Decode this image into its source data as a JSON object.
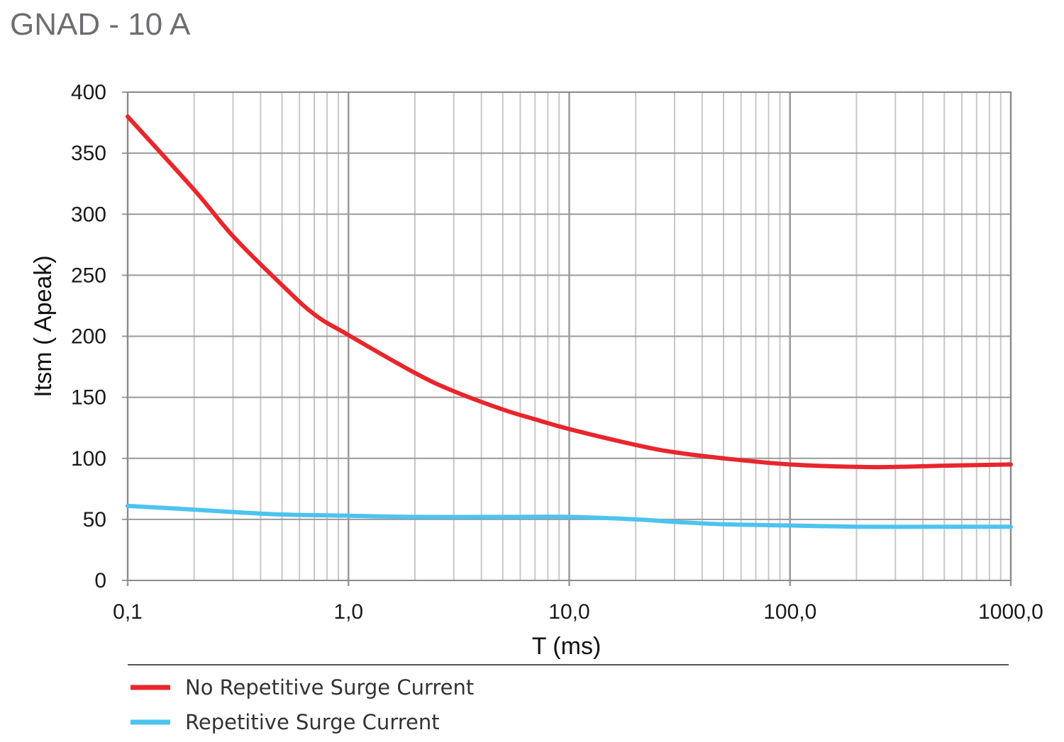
{
  "title": "GNAD - 10 A",
  "chart_data": {
    "type": "line",
    "title": "GNAD - 10 A",
    "xlabel": "T (ms)",
    "ylabel": "Itsm ( Apeak)",
    "x_scale": "log",
    "xlim": [
      0.1,
      1000
    ],
    "ylim": [
      0,
      400
    ],
    "grid": true,
    "legend_position": "bottom",
    "x_ticks": [
      {
        "value": 0.1,
        "label": "0,1"
      },
      {
        "value": 1,
        "label": "1,0"
      },
      {
        "value": 10,
        "label": "10,0"
      },
      {
        "value": 100,
        "label": "100,0"
      },
      {
        "value": 1000,
        "label": "1000,0"
      }
    ],
    "y_ticks": [
      {
        "value": 0,
        "label": "0"
      },
      {
        "value": 50,
        "label": "50"
      },
      {
        "value": 100,
        "label": "100"
      },
      {
        "value": 150,
        "label": "150"
      },
      {
        "value": 200,
        "label": "200"
      },
      {
        "value": 250,
        "label": "250"
      },
      {
        "value": 300,
        "label": "300"
      },
      {
        "value": 350,
        "label": "350"
      },
      {
        "value": 400,
        "label": "400"
      }
    ],
    "series": [
      {
        "name": "No Repetitive Surge Current",
        "color": "#e8262c",
        "points": [
          {
            "x": 0.1,
            "y": 380
          },
          {
            "x": 0.2,
            "y": 320
          },
          {
            "x": 0.3,
            "y": 282
          },
          {
            "x": 0.5,
            "y": 242
          },
          {
            "x": 0.7,
            "y": 218
          },
          {
            "x": 1,
            "y": 201
          },
          {
            "x": 2,
            "y": 170
          },
          {
            "x": 3,
            "y": 155
          },
          {
            "x": 5,
            "y": 140
          },
          {
            "x": 7,
            "y": 132
          },
          {
            "x": 10,
            "y": 124
          },
          {
            "x": 20,
            "y": 111
          },
          {
            "x": 30,
            "y": 105
          },
          {
            "x": 50,
            "y": 100
          },
          {
            "x": 100,
            "y": 95
          },
          {
            "x": 200,
            "y": 93
          },
          {
            "x": 300,
            "y": 93
          },
          {
            "x": 500,
            "y": 94
          },
          {
            "x": 1000,
            "y": 95
          }
        ]
      },
      {
        "name": "Repetitive Surge Current",
        "color": "#4dc3f0",
        "points": [
          {
            "x": 0.1,
            "y": 61
          },
          {
            "x": 0.2,
            "y": 58
          },
          {
            "x": 0.3,
            "y": 56
          },
          {
            "x": 0.5,
            "y": 54
          },
          {
            "x": 1,
            "y": 53
          },
          {
            "x": 2,
            "y": 52
          },
          {
            "x": 5,
            "y": 52
          },
          {
            "x": 10,
            "y": 52
          },
          {
            "x": 20,
            "y": 50
          },
          {
            "x": 30,
            "y": 48
          },
          {
            "x": 50,
            "y": 46
          },
          {
            "x": 100,
            "y": 45
          },
          {
            "x": 200,
            "y": 44
          },
          {
            "x": 500,
            "y": 44
          },
          {
            "x": 1000,
            "y": 44
          }
        ]
      }
    ]
  }
}
